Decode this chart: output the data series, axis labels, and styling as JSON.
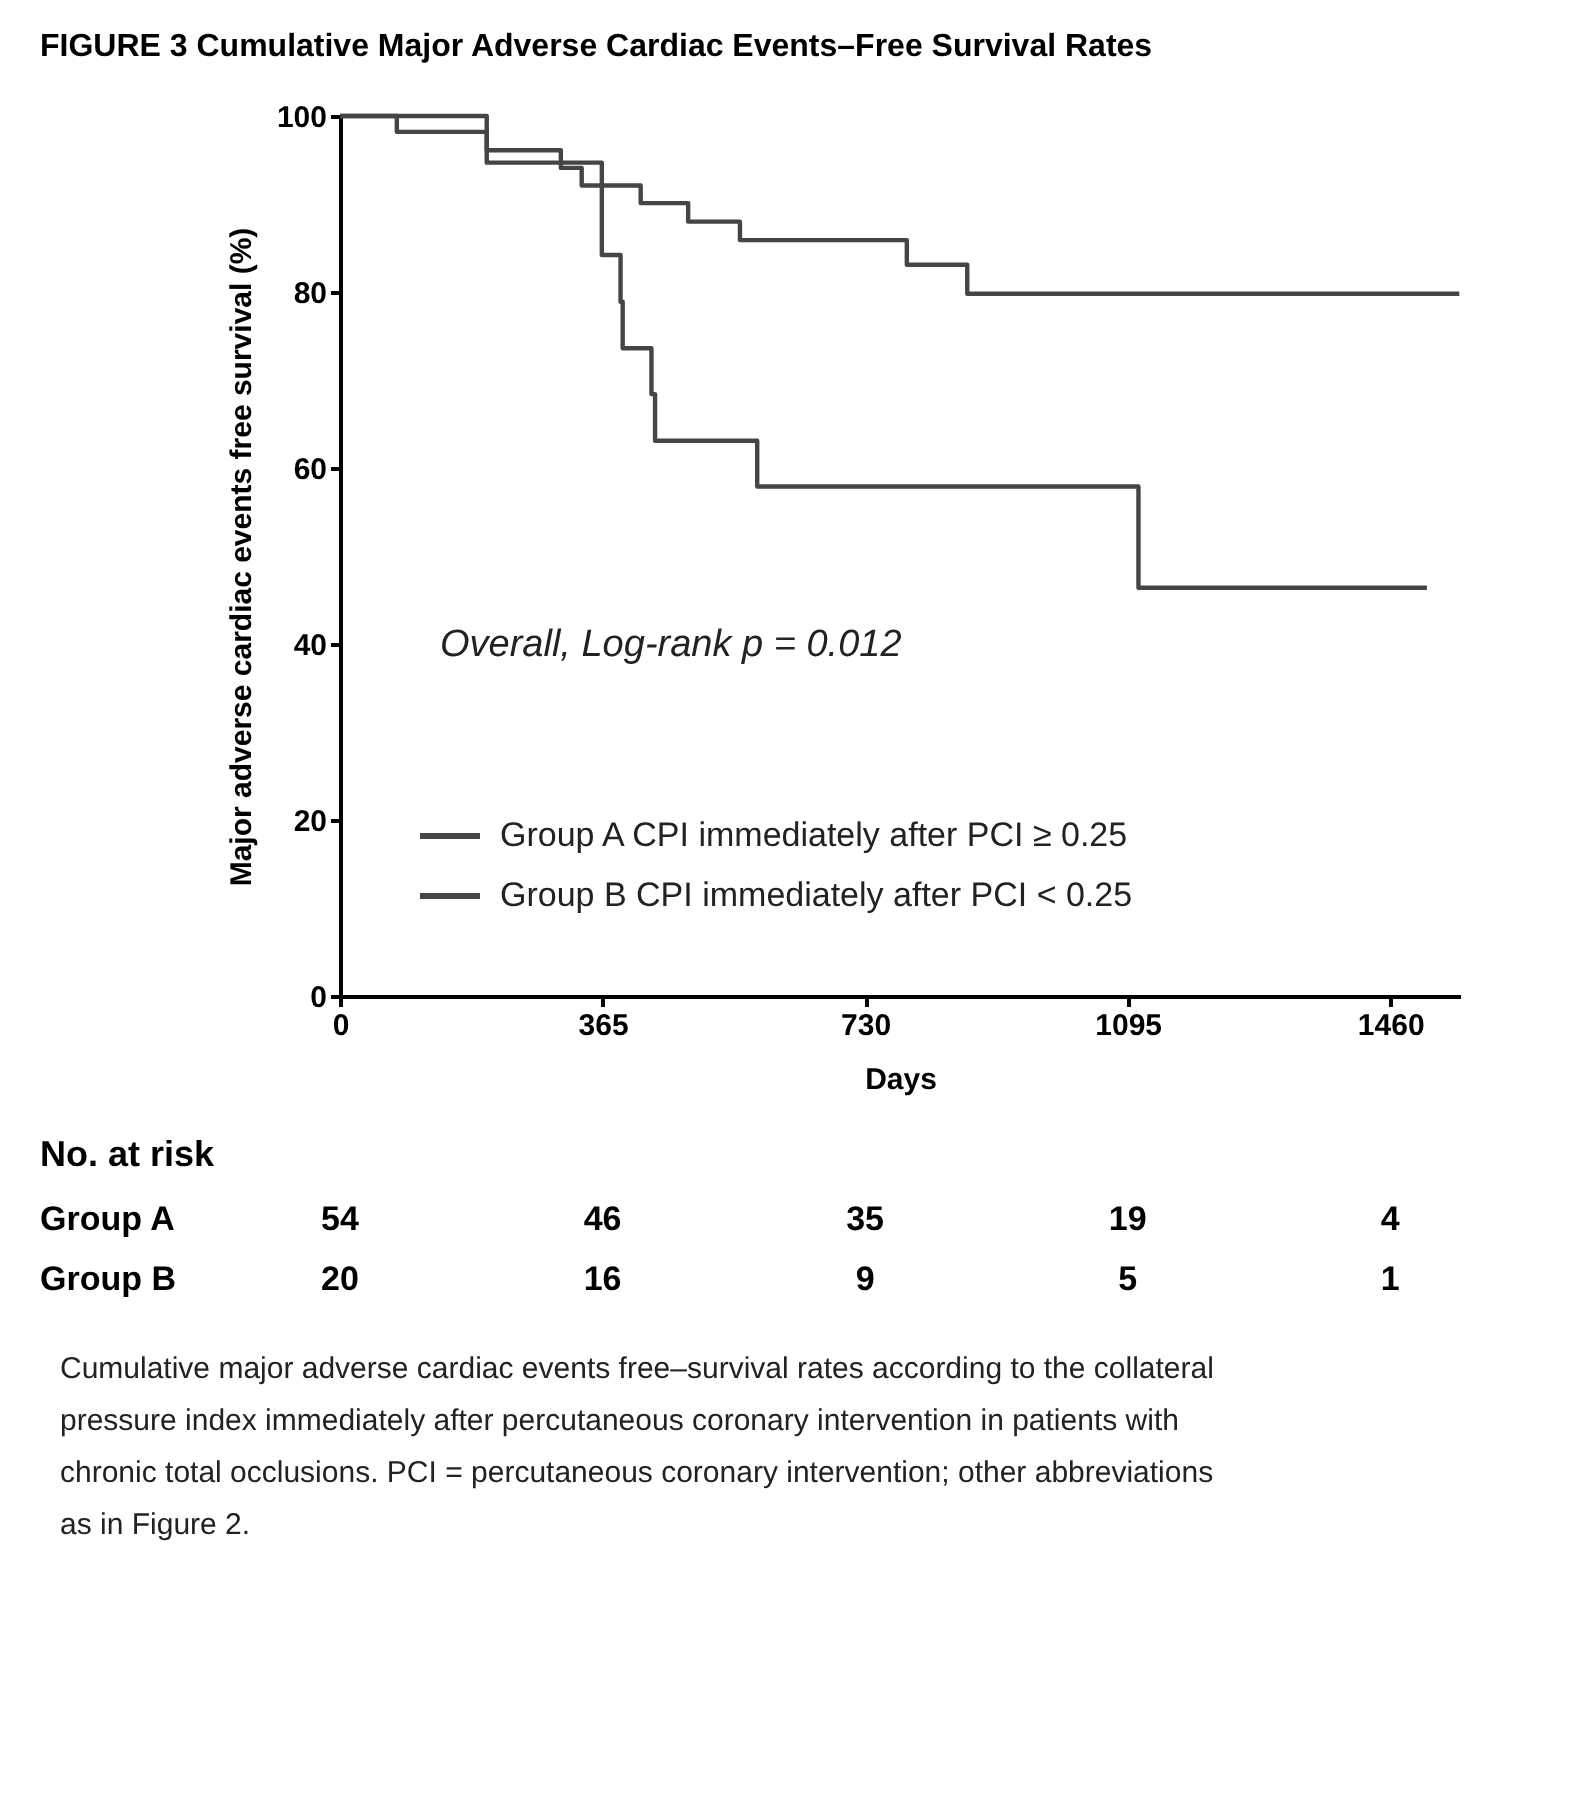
{
  "chart_data": [
    {
      "type": "step",
      "title": "FIGURE 3 Cumulative Major Adverse Cardiac Events–Free Survival Rates",
      "xlabel": "Days",
      "ylabel": "Major adverse cardiac events free survival (%)",
      "xlim": [
        0,
        1557
      ],
      "ylim": [
        0,
        100
      ],
      "xticks": [
        0,
        365,
        730,
        1095,
        1460
      ],
      "yticks": [
        0,
        20,
        40,
        60,
        80,
        100
      ],
      "grid": false,
      "legend": "bottom left",
      "line_style": "solid",
      "annotations": [
        "Overall, Log-rank p = 0.012",
        "Cumulative major adverse cardiac events free–survival rates according to the collateral pressure index immediately after percutaneous coronary intervention in patients with chronic total occlusions. PCI = percutaneous coronary intervention; other abbreviations as in Figure 2."
      ],
      "series": [
        {
          "name": "Group A    CPI immediately after PCI ≥ 0.25",
          "color": "#454545",
          "x": [
            0,
            79,
            204,
            307,
            336,
            418,
            484,
            556,
            788,
            872,
            1556
          ],
          "values": [
            100,
            98.2,
            96.1,
            94.1,
            92.1,
            90.1,
            88.0,
            85.9,
            83.1,
            79.8,
            79.8
          ]
        },
        {
          "name": "Group B    CPI immediately after PCI < 0.25",
          "color": "#454545",
          "x": [
            0,
            204,
            364,
            390,
            393,
            433,
            438,
            580,
            1110,
            1511
          ],
          "values": [
            100,
            94.7,
            84.2,
            78.9,
            73.6,
            68.4,
            63.1,
            57.9,
            46.4,
            46.4
          ]
        }
      ]
    },
    {
      "type": "other",
      "title": "No. at risk",
      "annotations": [
        "Group A",
        "54",
        "46",
        "35",
        "19",
        "4",
        "Group B",
        "20",
        "16",
        "9",
        "5",
        "1"
      ]
    }
  ]
}
